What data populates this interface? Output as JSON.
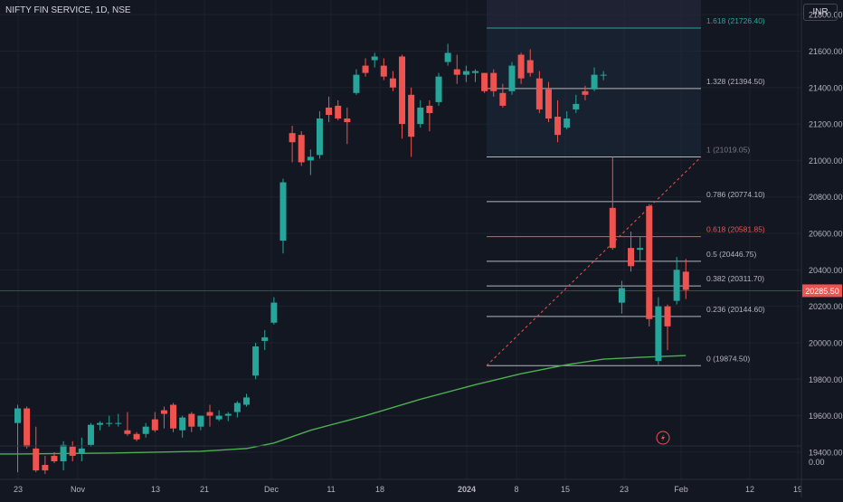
{
  "title": "NIFTY FIN SERVICE, 1D, NSE",
  "currency": "INR",
  "last_price_label": "20285.50",
  "volume_label": "0.00",
  "colors": {
    "background": "#131722",
    "up": "#26a69a",
    "down": "#ef5350",
    "ma": "#4caf50",
    "fib_line": "#b2b5be",
    "fib_top": "#26a69a",
    "fib_red": "#ef5350",
    "axis_text": "#b2b5be",
    "grid": "#1e222d"
  },
  "chart_data": {
    "type": "candlestick",
    "y_ticks": [
      "21800.00",
      "21600.00",
      "21400.00",
      "21200.00",
      "21000.00",
      "20800.00",
      "20600.00",
      "20400.00",
      "20200.00",
      "20000.00",
      "19800.00",
      "19600.00",
      "19400.00"
    ],
    "x_ticks": [
      "23",
      "Nov",
      "13",
      "21",
      "Dec",
      "11",
      "18",
      "2024",
      "8",
      "15",
      "23",
      "Feb",
      "12",
      "19"
    ],
    "ylim": [
      19340,
      21880
    ],
    "candles": [
      {
        "o": 19560,
        "h": 19660,
        "l": 19290,
        "c": 19640
      },
      {
        "o": 19640,
        "h": 19650,
        "l": 19420,
        "c": 19430
      },
      {
        "o": 19420,
        "h": 19540,
        "l": 19290,
        "c": 19300
      },
      {
        "o": 19330,
        "h": 19380,
        "l": 19280,
        "c": 19300
      },
      {
        "o": 19380,
        "h": 19400,
        "l": 19340,
        "c": 19350
      },
      {
        "o": 19350,
        "h": 19460,
        "l": 19300,
        "c": 19440
      },
      {
        "o": 19430,
        "h": 19460,
        "l": 19350,
        "c": 19380
      },
      {
        "o": 19390,
        "h": 19480,
        "l": 19350,
        "c": 19420
      },
      {
        "o": 19440,
        "h": 19560,
        "l": 19430,
        "c": 19550
      },
      {
        "o": 19550,
        "h": 19570,
        "l": 19520,
        "c": 19560
      },
      {
        "o": 19560,
        "h": 19600,
        "l": 19540,
        "c": 19560
      },
      {
        "o": 19560,
        "h": 19610,
        "l": 19540,
        "c": 19560
      },
      {
        "o": 19520,
        "h": 19620,
        "l": 19490,
        "c": 19500
      },
      {
        "o": 19500,
        "h": 19510,
        "l": 19460,
        "c": 19470
      },
      {
        "o": 19500,
        "h": 19560,
        "l": 19480,
        "c": 19540
      },
      {
        "o": 19580,
        "h": 19620,
        "l": 19510,
        "c": 19520
      },
      {
        "o": 19630,
        "h": 19650,
        "l": 19530,
        "c": 19610
      },
      {
        "o": 19660,
        "h": 19670,
        "l": 19510,
        "c": 19530
      },
      {
        "o": 19520,
        "h": 19600,
        "l": 19480,
        "c": 19590
      },
      {
        "o": 19610,
        "h": 19620,
        "l": 19510,
        "c": 19540
      },
      {
        "o": 19540,
        "h": 19600,
        "l": 19520,
        "c": 19600
      },
      {
        "o": 19620,
        "h": 19660,
        "l": 19540,
        "c": 19600
      },
      {
        "o": 19580,
        "h": 19630,
        "l": 19570,
        "c": 19600
      },
      {
        "o": 19600,
        "h": 19620,
        "l": 19570,
        "c": 19610
      },
      {
        "o": 19620,
        "h": 19680,
        "l": 19590,
        "c": 19670
      },
      {
        "o": 19660,
        "h": 19720,
        "l": 19650,
        "c": 19700
      },
      {
        "o": 19820,
        "h": 20000,
        "l": 19800,
        "c": 19980
      },
      {
        "o": 20010,
        "h": 20070,
        "l": 19960,
        "c": 20030
      },
      {
        "o": 20110,
        "h": 20250,
        "l": 20100,
        "c": 20220
      },
      {
        "o": 20560,
        "h": 20900,
        "l": 20490,
        "c": 20880
      },
      {
        "o": 21150,
        "h": 21190,
        "l": 20990,
        "c": 21100
      },
      {
        "o": 21140,
        "h": 21160,
        "l": 20970,
        "c": 20990
      },
      {
        "o": 21000,
        "h": 21060,
        "l": 20920,
        "c": 21020
      },
      {
        "o": 21030,
        "h": 21270,
        "l": 21010,
        "c": 21230
      },
      {
        "o": 21290,
        "h": 21350,
        "l": 21210,
        "c": 21250
      },
      {
        "o": 21300,
        "h": 21330,
        "l": 21220,
        "c": 21230
      },
      {
        "o": 21230,
        "h": 21290,
        "l": 21090,
        "c": 21210
      },
      {
        "o": 21370,
        "h": 21500,
        "l": 21360,
        "c": 21470
      },
      {
        "o": 21520,
        "h": 21560,
        "l": 21460,
        "c": 21480
      },
      {
        "o": 21550,
        "h": 21590,
        "l": 21510,
        "c": 21570
      },
      {
        "o": 21520,
        "h": 21560,
        "l": 21440,
        "c": 21460
      },
      {
        "o": 21450,
        "h": 21490,
        "l": 21380,
        "c": 21400
      },
      {
        "o": 21570,
        "h": 21580,
        "l": 21120,
        "c": 21200
      },
      {
        "o": 21360,
        "h": 21400,
        "l": 21020,
        "c": 21130
      },
      {
        "o": 21200,
        "h": 21330,
        "l": 21180,
        "c": 21290
      },
      {
        "o": 21300,
        "h": 21330,
        "l": 21160,
        "c": 21260
      },
      {
        "o": 21320,
        "h": 21480,
        "l": 21300,
        "c": 21460
      },
      {
        "o": 21540,
        "h": 21640,
        "l": 21520,
        "c": 21590
      },
      {
        "o": 21500,
        "h": 21580,
        "l": 21420,
        "c": 21470
      },
      {
        "o": 21470,
        "h": 21520,
        "l": 21430,
        "c": 21490
      },
      {
        "o": 21480,
        "h": 21500,
        "l": 21430,
        "c": 21490
      },
      {
        "o": 21480,
        "h": 21480,
        "l": 21370,
        "c": 21380
      },
      {
        "o": 21480,
        "h": 21500,
        "l": 21350,
        "c": 21380
      },
      {
        "o": 21370,
        "h": 21420,
        "l": 21290,
        "c": 21300
      },
      {
        "o": 21380,
        "h": 21540,
        "l": 21360,
        "c": 21520
      },
      {
        "o": 21580,
        "h": 21590,
        "l": 21420,
        "c": 21450
      },
      {
        "o": 21550,
        "h": 21610,
        "l": 21460,
        "c": 21480
      },
      {
        "o": 21450,
        "h": 21490,
        "l": 21260,
        "c": 21280
      },
      {
        "o": 21390,
        "h": 21430,
        "l": 21210,
        "c": 21230
      },
      {
        "o": 21240,
        "h": 21330,
        "l": 21100,
        "c": 21140
      },
      {
        "o": 21180,
        "h": 21270,
        "l": 21170,
        "c": 21230
      },
      {
        "o": 21280,
        "h": 21360,
        "l": 21260,
        "c": 21310
      },
      {
        "o": 21380,
        "h": 21410,
        "l": 21330,
        "c": 21360
      },
      {
        "o": 21390,
        "h": 21510,
        "l": 21380,
        "c": 21470
      },
      {
        "o": 21470,
        "h": 21490,
        "l": 21440,
        "c": 21470
      },
      {
        "o": 20740,
        "h": 21020,
        "l": 20510,
        "c": 20520
      },
      {
        "o": 20220,
        "h": 20340,
        "l": 20160,
        "c": 20300
      },
      {
        "o": 20520,
        "h": 20610,
        "l": 20390,
        "c": 20420
      },
      {
        "o": 20510,
        "h": 20580,
        "l": 20450,
        "c": 20520
      },
      {
        "o": 20750,
        "h": 20760,
        "l": 20090,
        "c": 20130
      },
      {
        "o": 19900,
        "h": 20250,
        "l": 19880,
        "c": 20200
      },
      {
        "o": 20200,
        "h": 20210,
        "l": 19960,
        "c": 20090
      },
      {
        "o": 20230,
        "h": 20470,
        "l": 20210,
        "c": 20400
      },
      {
        "o": 20390,
        "h": 20460,
        "l": 20240,
        "c": 20290
      }
    ],
    "ma": [
      [
        0,
        19390
      ],
      [
        10,
        19395
      ],
      [
        20,
        19405
      ],
      [
        25,
        19420
      ],
      [
        28,
        19450
      ],
      [
        32,
        19520
      ],
      [
        38,
        19600
      ],
      [
        44,
        19690
      ],
      [
        50,
        19770
      ],
      [
        55,
        19830
      ],
      [
        60,
        19880
      ],
      [
        64,
        19910
      ],
      [
        68,
        19920
      ],
      [
        73,
        19930
      ]
    ],
    "fib_levels": [
      {
        "ratio": "1.618",
        "price": "21726.40",
        "value": 21726.4,
        "color": "fib_top"
      },
      {
        "ratio": "1.328",
        "price": "21394.50",
        "value": 21394.5,
        "color": "fib_line"
      },
      {
        "ratio": "1",
        "price": "21019.05",
        "value": 21019.05,
        "color": "fib_line"
      },
      {
        "ratio": "0.786",
        "price": "20774.10",
        "value": 20774.1,
        "color": "fib_line"
      },
      {
        "ratio": "0.618",
        "price": "20581.85",
        "value": 20581.85,
        "color": "fib_red"
      },
      {
        "ratio": "0.5",
        "price": "20446.75",
        "value": 20446.75,
        "color": "fib_line"
      },
      {
        "ratio": "0.382",
        "price": "20311.70",
        "value": 20311.7,
        "color": "fib_line"
      },
      {
        "ratio": "0.236",
        "price": "20144.60",
        "value": 20144.6,
        "color": "fib_line"
      },
      {
        "ratio": "0",
        "price": "19874.50",
        "value": 19874.5,
        "color": "fib_line"
      }
    ],
    "last_price": 20285.5
  }
}
